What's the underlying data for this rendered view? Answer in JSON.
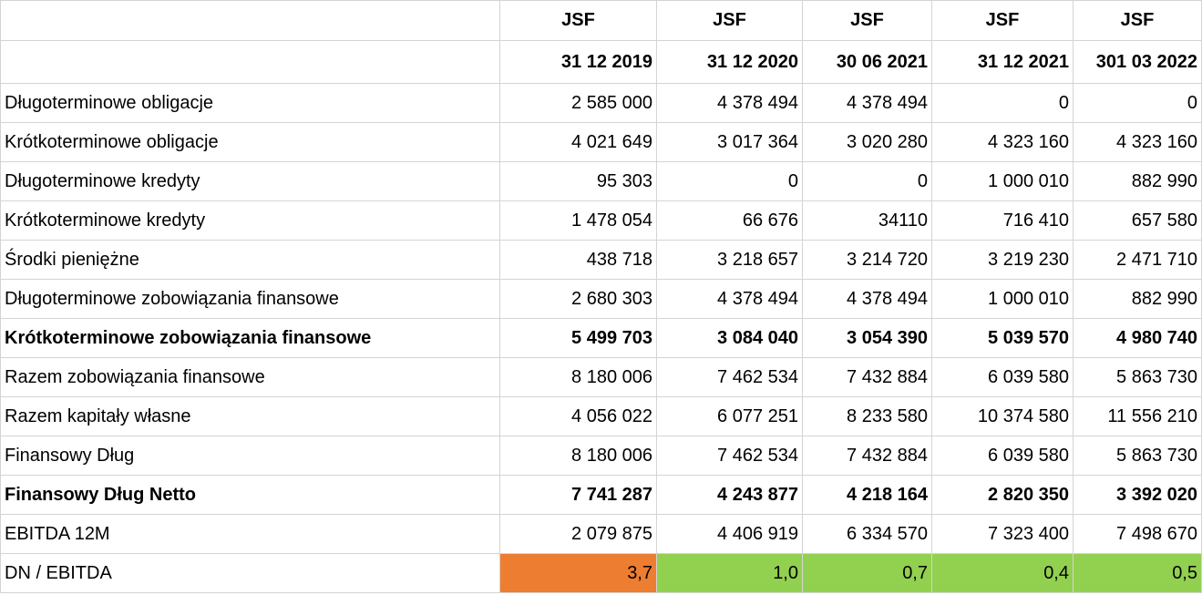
{
  "header": {
    "companies": [
      "JSF",
      "JSF",
      "JSF",
      "JSF",
      "JSF"
    ],
    "dates": [
      "31 12 2019",
      "31 12 2020",
      "30 06 2021",
      "31 12 2021",
      "301 03 2022"
    ]
  },
  "rows": [
    {
      "label": "Długoterminowe obligacje",
      "values": [
        "2 585 000",
        "4 378 494",
        "4 378 494",
        "0",
        "0"
      ]
    },
    {
      "label": "Krótkoterminowe obligacje",
      "values": [
        "4 021 649",
        "3 017 364",
        "3 020 280",
        "4 323 160",
        "4 323 160"
      ]
    },
    {
      "label": "Długoterminowe kredyty",
      "values": [
        "95 303",
        "0",
        "0",
        "1 000 010",
        "882 990"
      ]
    },
    {
      "label": "Krótkoterminowe kredyty",
      "values": [
        "1 478 054",
        "66 676",
        "34110",
        "716 410",
        "657 580"
      ]
    },
    {
      "label": "Środki pieniężne",
      "values": [
        "438 718",
        "3 218 657",
        "3 214 720",
        "3 219 230",
        "2 471 710"
      ]
    },
    {
      "label": "Długoterminowe zobowiązania finansowe",
      "values": [
        "2 680 303",
        "4 378 494",
        "4 378 494",
        "1 000 010",
        "882 990"
      ]
    },
    {
      "label": "Krótkoterminowe zobowiązania finansowe",
      "bold": true,
      "values": [
        "5 499 703",
        "3 084 040",
        "3 054 390",
        "5 039 570",
        "4 980 740"
      ]
    },
    {
      "label": "Razem zobowiązania finansowe",
      "values": [
        "8 180 006",
        "7 462 534",
        "7 432 884",
        "6 039 580",
        "5 863 730"
      ]
    },
    {
      "label": "Razem kapitały własne",
      "values": [
        "4 056 022",
        "6 077 251",
        "8 233 580",
        "10 374 580",
        "11 556 210"
      ]
    },
    {
      "label": "Finansowy Dług",
      "values": [
        "8 180 006",
        "7 462 534",
        "7 432 884",
        "6 039 580",
        "5 863 730"
      ]
    },
    {
      "label": "Finansowy Dług Netto",
      "bold": true,
      "values": [
        "7 741 287",
        "4 243 877",
        "4 218 164",
        "2 820 350",
        "3 392 020"
      ]
    },
    {
      "label": "EBITDA 12M",
      "values": [
        "2 079 875",
        "4 406 919",
        "6 334 570",
        "7 323 400",
        "7 498 670"
      ]
    },
    {
      "label": "DN / EBITDA",
      "values": [
        "3,7",
        "1,0",
        "0,7",
        "0,4",
        "0,5"
      ],
      "colors": [
        "#ed7d31",
        "#92d050",
        "#92d050",
        "#92d050",
        "#92d050"
      ]
    }
  ]
}
